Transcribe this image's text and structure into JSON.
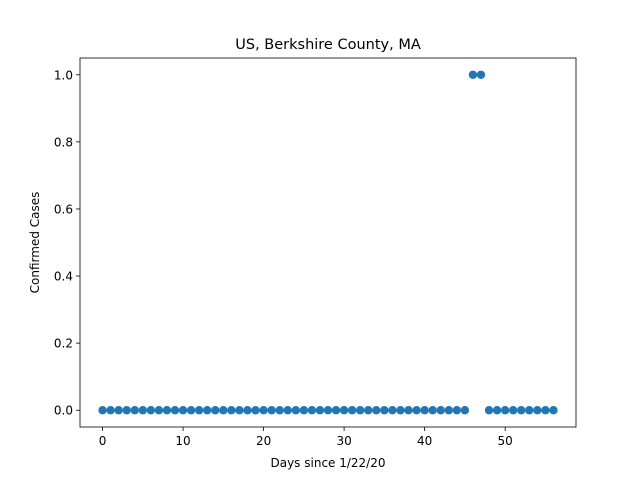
{
  "chart_data": {
    "type": "scatter",
    "title": "US, Berkshire County, MA",
    "xlabel": "Days since 1/22/20",
    "ylabel": "Confirmed Cases",
    "xlim": [
      -2.8,
      58.8
    ],
    "ylim": [
      -0.05,
      1.05
    ],
    "xticks": [
      0,
      10,
      20,
      30,
      40,
      50
    ],
    "xtick_labels": [
      "0",
      "10",
      "20",
      "30",
      "40",
      "50"
    ],
    "yticks": [
      0.0,
      0.2,
      0.4,
      0.6,
      0.8,
      1.0
    ],
    "ytick_labels": [
      "0.0",
      "0.2",
      "0.4",
      "0.6",
      "0.8",
      "1.0"
    ],
    "grid": false,
    "marker_color": "#1f77b4",
    "x": [
      0,
      1,
      2,
      3,
      4,
      5,
      6,
      7,
      8,
      9,
      10,
      11,
      12,
      13,
      14,
      15,
      16,
      17,
      18,
      19,
      20,
      21,
      22,
      23,
      24,
      25,
      26,
      27,
      28,
      29,
      30,
      31,
      32,
      33,
      34,
      35,
      36,
      37,
      38,
      39,
      40,
      41,
      42,
      43,
      44,
      45,
      46,
      47,
      48,
      49,
      50,
      51,
      52,
      53,
      54,
      55,
      56
    ],
    "y": [
      0,
      0,
      0,
      0,
      0,
      0,
      0,
      0,
      0,
      0,
      0,
      0,
      0,
      0,
      0,
      0,
      0,
      0,
      0,
      0,
      0,
      0,
      0,
      0,
      0,
      0,
      0,
      0,
      0,
      0,
      0,
      0,
      0,
      0,
      0,
      0,
      0,
      0,
      0,
      0,
      0,
      0,
      0,
      0,
      0,
      0,
      1,
      1,
      0,
      0,
      0,
      0,
      0,
      0,
      0,
      0,
      0
    ]
  }
}
